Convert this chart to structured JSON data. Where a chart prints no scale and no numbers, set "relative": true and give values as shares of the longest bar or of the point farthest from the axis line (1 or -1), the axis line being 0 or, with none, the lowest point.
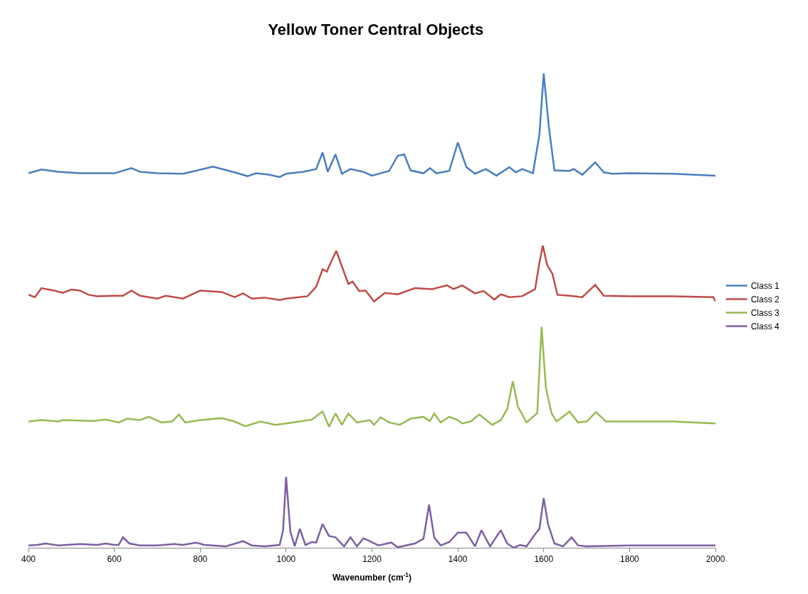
{
  "chart_data": {
    "type": "line",
    "title": "Yellow Toner Central Objects",
    "xlabel": "Wavenumber (cm$^{-1}$)",
    "relative": true,
    "xlim": [
      400,
      2000
    ],
    "xticks": [
      400,
      600,
      800,
      1000,
      1200,
      1400,
      1600,
      1800,
      2000
    ],
    "legend": "right",
    "marker": "none",
    "line_style": "solid",
    "series": [
      {
        "name": "Class 1",
        "color": "#4a7ebb",
        "x": [
          400,
          430,
          470,
          520,
          600,
          640,
          660,
          700,
          760,
          830,
          880,
          910,
          930,
          960,
          985,
          1000,
          1040,
          1070,
          1085,
          1097,
          1115,
          1130,
          1150,
          1180,
          1200,
          1240,
          1260,
          1275,
          1290,
          1320,
          1335,
          1350,
          1380,
          1400,
          1420,
          1440,
          1465,
          1490,
          1520,
          1535,
          1550,
          1575,
          1590,
          1600,
          1612,
          1625,
          1660,
          1670,
          1690,
          1720,
          1740,
          1760,
          1800,
          1900,
          2000
        ],
        "values": [
          0.789,
          0.797,
          0.792,
          0.789,
          0.789,
          0.8,
          0.792,
          0.789,
          0.788,
          0.803,
          0.791,
          0.783,
          0.789,
          0.786,
          0.781,
          0.788,
          0.792,
          0.798,
          0.833,
          0.792,
          0.829,
          0.788,
          0.798,
          0.792,
          0.784,
          0.794,
          0.826,
          0.829,
          0.795,
          0.789,
          0.8,
          0.789,
          0.794,
          0.854,
          0.802,
          0.788,
          0.798,
          0.784,
          0.802,
          0.791,
          0.798,
          0.789,
          0.871,
          1.0,
          0.887,
          0.795,
          0.794,
          0.798,
          0.786,
          0.812,
          0.791,
          0.788,
          0.789,
          0.788,
          0.784
        ]
      },
      {
        "name": "Class 2",
        "color": "#be4b48",
        "x": [
          400,
          415,
          430,
          460,
          480,
          500,
          520,
          540,
          560,
          600,
          620,
          640,
          660,
          700,
          720,
          760,
          800,
          850,
          880,
          900,
          920,
          950,
          985,
          1000,
          1050,
          1070,
          1085,
          1095,
          1100,
          1117,
          1130,
          1145,
          1155,
          1170,
          1185,
          1205,
          1230,
          1260,
          1300,
          1340,
          1375,
          1390,
          1410,
          1440,
          1460,
          1485,
          1500,
          1520,
          1550,
          1580,
          1590,
          1598,
          1608,
          1620,
          1632,
          1660,
          1690,
          1720,
          1740,
          1800,
          1900,
          1995,
          2000
        ],
        "values": [
          0.532,
          0.527,
          0.546,
          0.541,
          0.536,
          0.543,
          0.541,
          0.532,
          0.529,
          0.53,
          0.53,
          0.541,
          0.53,
          0.524,
          0.53,
          0.524,
          0.541,
          0.538,
          0.527,
          0.535,
          0.524,
          0.526,
          0.521,
          0.524,
          0.529,
          0.549,
          0.586,
          0.581,
          0.592,
          0.625,
          0.592,
          0.555,
          0.56,
          0.54,
          0.541,
          0.518,
          0.536,
          0.533,
          0.546,
          0.544,
          0.552,
          0.544,
          0.552,
          0.535,
          0.54,
          0.522,
          0.533,
          0.527,
          0.529,
          0.544,
          0.6,
          0.636,
          0.595,
          0.577,
          0.532,
          0.53,
          0.527,
          0.553,
          0.53,
          0.529,
          0.529,
          0.527,
          0.518
        ]
      },
      {
        "name": "Class 3",
        "color": "#98b954",
        "x": [
          400,
          430,
          470,
          480,
          550,
          580,
          610,
          630,
          660,
          680,
          710,
          735,
          750,
          765,
          800,
          850,
          880,
          905,
          940,
          975,
          1000,
          1060,
          1085,
          1100,
          1115,
          1130,
          1145,
          1165,
          1195,
          1205,
          1220,
          1240,
          1265,
          1290,
          1320,
          1335,
          1345,
          1360,
          1380,
          1400,
          1410,
          1430,
          1450,
          1480,
          1500,
          1515,
          1528,
          1540,
          1560,
          1585,
          1595,
          1605,
          1618,
          1630,
          1660,
          1680,
          1700,
          1722,
          1745,
          1800,
          1900,
          2000
        ],
        "values": [
          0.264,
          0.267,
          0.264,
          0.267,
          0.265,
          0.268,
          0.262,
          0.27,
          0.267,
          0.274,
          0.262,
          0.264,
          0.279,
          0.262,
          0.267,
          0.271,
          0.264,
          0.254,
          0.264,
          0.257,
          0.26,
          0.268,
          0.285,
          0.253,
          0.281,
          0.257,
          0.281,
          0.262,
          0.267,
          0.257,
          0.273,
          0.262,
          0.257,
          0.27,
          0.274,
          0.265,
          0.281,
          0.262,
          0.274,
          0.267,
          0.26,
          0.264,
          0.279,
          0.257,
          0.267,
          0.29,
          0.349,
          0.295,
          0.262,
          0.282,
          0.464,
          0.336,
          0.282,
          0.264,
          0.285,
          0.262,
          0.264,
          0.284,
          0.264,
          0.264,
          0.264,
          0.26
        ]
      },
      {
        "name": "Class 4",
        "color": "#7d60a0",
        "x": [
          400,
          420,
          440,
          470,
          520,
          560,
          580,
          600,
          610,
          620,
          635,
          660,
          700,
          740,
          760,
          790,
          810,
          860,
          900,
          920,
          950,
          985,
          993,
          1000,
          1010,
          1020,
          1032,
          1045,
          1060,
          1070,
          1085,
          1100,
          1115,
          1135,
          1150,
          1165,
          1180,
          1195,
          1215,
          1245,
          1260,
          1300,
          1320,
          1333,
          1345,
          1360,
          1380,
          1400,
          1420,
          1440,
          1455,
          1475,
          1500,
          1515,
          1530,
          1545,
          1560,
          1580,
          1590,
          1600,
          1610,
          1625,
          1645,
          1665,
          1680,
          1700,
          1800,
          1900,
          2000
        ],
        "values": [
          0.002,
          0.003,
          0.006,
          0.002,
          0.005,
          0.003,
          0.006,
          0.003,
          0.003,
          0.019,
          0.006,
          0.002,
          0.002,
          0.005,
          0.003,
          0.008,
          0.003,
          0,
          0.011,
          0.002,
          0,
          0.003,
          0.034,
          0.147,
          0.031,
          0,
          0.037,
          0.003,
          0.009,
          0.008,
          0.047,
          0.022,
          0.019,
          0,
          0.019,
          0,
          0.017,
          0.011,
          0.002,
          0.008,
          -0.002,
          0.006,
          0.016,
          0.088,
          0.019,
          0.002,
          0.009,
          0.029,
          0.029,
          0,
          0.034,
          0,
          0.034,
          0.006,
          -0.003,
          0.003,
          0,
          0.026,
          0.037,
          0.102,
          0.047,
          0.006,
          0,
          0.019,
          0.002,
          0,
          0.002,
          0.002,
          0.002
        ]
      }
    ]
  }
}
